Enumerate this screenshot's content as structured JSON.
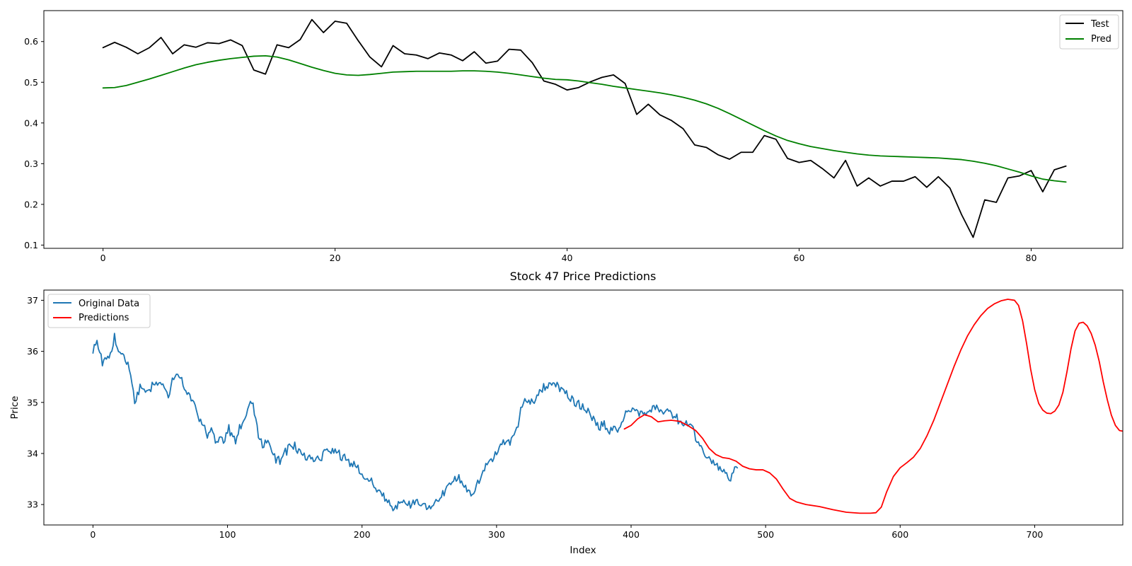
{
  "chart_data": [
    {
      "type": "line",
      "title": "",
      "xlabel": "",
      "ylabel": "",
      "xlim": [
        -5.1,
        87.9
      ],
      "ylim": [
        0.092,
        0.676
      ],
      "xticks": [
        0,
        20,
        40,
        60,
        80
      ],
      "yticks": [
        0.1,
        0.2,
        0.3,
        0.4,
        0.5,
        0.6
      ],
      "ytick_format": "1dp",
      "legend_position": "top-right",
      "series": [
        {
          "name": "Test",
          "color": "#000000",
          "x_start": 0,
          "x_step": 1,
          "values": [
            0.585,
            0.598,
            0.586,
            0.57,
            0.585,
            0.61,
            0.57,
            0.592,
            0.586,
            0.597,
            0.595,
            0.604,
            0.59,
            0.53,
            0.52,
            0.592,
            0.585,
            0.605,
            0.654,
            0.622,
            0.65,
            0.645,
            0.602,
            0.562,
            0.538,
            0.59,
            0.57,
            0.567,
            0.558,
            0.572,
            0.567,
            0.553,
            0.575,
            0.547,
            0.552,
            0.581,
            0.579,
            0.548,
            0.503,
            0.495,
            0.481,
            0.487,
            0.501,
            0.512,
            0.518,
            0.497,
            0.421,
            0.446,
            0.42,
            0.406,
            0.386,
            0.346,
            0.34,
            0.322,
            0.311,
            0.328,
            0.328,
            0.369,
            0.36,
            0.313,
            0.303,
            0.308,
            0.288,
            0.265,
            0.308,
            0.245,
            0.265,
            0.245,
            0.257,
            0.257,
            0.268,
            0.242,
            0.268,
            0.24,
            0.175,
            0.119,
            0.211,
            0.205,
            0.265,
            0.27,
            0.283,
            0.231,
            0.285,
            0.294
          ]
        },
        {
          "name": "Pred",
          "color": "#008000",
          "x_start": 0,
          "x_step": 1,
          "values": [
            0.486,
            0.487,
            0.492,
            0.5,
            0.508,
            0.517,
            0.526,
            0.535,
            0.543,
            0.549,
            0.554,
            0.558,
            0.561,
            0.564,
            0.565,
            0.562,
            0.555,
            0.546,
            0.537,
            0.529,
            0.522,
            0.518,
            0.517,
            0.519,
            0.522,
            0.525,
            0.526,
            0.527,
            0.527,
            0.527,
            0.527,
            0.528,
            0.528,
            0.527,
            0.525,
            0.522,
            0.518,
            0.514,
            0.51,
            0.507,
            0.506,
            0.503,
            0.499,
            0.495,
            0.49,
            0.486,
            0.482,
            0.478,
            0.474,
            0.469,
            0.463,
            0.456,
            0.447,
            0.436,
            0.423,
            0.409,
            0.395,
            0.381,
            0.368,
            0.357,
            0.349,
            0.342,
            0.337,
            0.332,
            0.328,
            0.324,
            0.321,
            0.319,
            0.318,
            0.317,
            0.316,
            0.315,
            0.314,
            0.312,
            0.31,
            0.306,
            0.301,
            0.295,
            0.287,
            0.279,
            0.27,
            0.262,
            0.258,
            0.255
          ]
        }
      ]
    },
    {
      "type": "line",
      "title": "Stock 47 Price Predictions",
      "xlabel": "Index",
      "ylabel": "Price",
      "xlim": [
        -36.5,
        765.5
      ],
      "ylim": [
        32.6,
        37.2
      ],
      "xticks": [
        0,
        100,
        200,
        300,
        400,
        500,
        600,
        700
      ],
      "yticks": [
        33,
        34,
        35,
        36,
        37
      ],
      "ytick_format": "int",
      "legend_position": "top-left",
      "series": [
        {
          "name": "Original Data",
          "color": "#1f77b4",
          "noise_amplitude": 0.12,
          "points": [
            [
              0,
              36.05
            ],
            [
              3,
              36.2
            ],
            [
              7,
              35.8
            ],
            [
              11,
              35.85
            ],
            [
              14,
              35.95
            ],
            [
              16,
              36.25
            ],
            [
              19,
              36.0
            ],
            [
              23,
              35.9
            ],
            [
              27,
              35.7
            ],
            [
              31,
              35.0
            ],
            [
              35,
              35.3
            ],
            [
              40,
              35.2
            ],
            [
              47,
              35.4
            ],
            [
              52,
              35.35
            ],
            [
              56,
              35.1
            ],
            [
              59,
              35.5
            ],
            [
              63,
              35.6
            ],
            [
              68,
              35.3
            ],
            [
              72,
              35.15
            ],
            [
              76,
              34.95
            ],
            [
              79,
              34.7
            ],
            [
              82,
              34.6
            ],
            [
              85,
              34.35
            ],
            [
              88,
              34.5
            ],
            [
              92,
              34.2
            ],
            [
              97,
              34.3
            ],
            [
              101,
              34.5
            ],
            [
              106,
              34.25
            ],
            [
              111,
              34.6
            ],
            [
              115,
              34.85
            ],
            [
              118,
              35.0
            ],
            [
              122,
              34.5
            ],
            [
              126,
              34.15
            ],
            [
              130,
              34.3
            ],
            [
              135,
              33.9
            ],
            [
              140,
              33.85
            ],
            [
              145,
              34.1
            ],
            [
              150,
              34.15
            ],
            [
              156,
              33.95
            ],
            [
              162,
              33.95
            ],
            [
              168,
              33.85
            ],
            [
              174,
              34.1
            ],
            [
              180,
              34.0
            ],
            [
              186,
              33.95
            ],
            [
              193,
              33.8
            ],
            [
              200,
              33.6
            ],
            [
              206,
              33.45
            ],
            [
              212,
              33.3
            ],
            [
              218,
              33.1
            ],
            [
              223,
              32.9
            ],
            [
              229,
              33.05
            ],
            [
              236,
              33.0
            ],
            [
              242,
              33.05
            ],
            [
              248,
              32.9
            ],
            [
              254,
              33.0
            ],
            [
              260,
              33.2
            ],
            [
              266,
              33.45
            ],
            [
              272,
              33.55
            ],
            [
              277,
              33.3
            ],
            [
              282,
              33.2
            ],
            [
              288,
              33.55
            ],
            [
              294,
              33.8
            ],
            [
              300,
              34.05
            ],
            [
              305,
              34.25
            ],
            [
              310,
              34.2
            ],
            [
              314,
              34.4
            ],
            [
              318,
              34.85
            ],
            [
              323,
              35.05
            ],
            [
              328,
              35.0
            ],
            [
              334,
              35.25
            ],
            [
              340,
              35.35
            ],
            [
              345,
              35.35
            ],
            [
              351,
              35.2
            ],
            [
              356,
              35.05
            ],
            [
              361,
              34.95
            ],
            [
              366,
              34.85
            ],
            [
              371,
              34.7
            ],
            [
              376,
              34.5
            ],
            [
              380,
              34.55
            ],
            [
              385,
              34.45
            ],
            [
              390,
              34.45
            ],
            [
              395,
              34.75
            ],
            [
              400,
              34.85
            ],
            [
              405,
              34.85
            ],
            [
              410,
              34.8
            ],
            [
              415,
              34.85
            ],
            [
              420,
              34.9
            ],
            [
              426,
              34.8
            ],
            [
              432,
              34.75
            ],
            [
              438,
              34.55
            ],
            [
              444,
              34.55
            ],
            [
              450,
              34.2
            ],
            [
              455,
              34.0
            ],
            [
              460,
              33.85
            ],
            [
              465,
              33.75
            ],
            [
              470,
              33.65
            ],
            [
              473,
              33.45
            ],
            [
              476,
              33.65
            ],
            [
              479,
              33.75
            ]
          ]
        },
        {
          "name": "Predictions",
          "color": "#ff0000",
          "points": [
            [
              395,
              34.48
            ],
            [
              400,
              34.55
            ],
            [
              405,
              34.68
            ],
            [
              410,
              34.76
            ],
            [
              415,
              34.72
            ],
            [
              420,
              34.62
            ],
            [
              425,
              34.64
            ],
            [
              430,
              34.65
            ],
            [
              436,
              34.63
            ],
            [
              442,
              34.55
            ],
            [
              448,
              34.45
            ],
            [
              453,
              34.3
            ],
            [
              458,
              34.1
            ],
            [
              463,
              33.98
            ],
            [
              468,
              33.92
            ],
            [
              473,
              33.9
            ],
            [
              478,
              33.85
            ],
            [
              483,
              33.75
            ],
            [
              488,
              33.7
            ],
            [
              493,
              33.68
            ],
            [
              498,
              33.68
            ],
            [
              503,
              33.62
            ],
            [
              508,
              33.5
            ],
            [
              513,
              33.3
            ],
            [
              518,
              33.12
            ],
            [
              523,
              33.05
            ],
            [
              530,
              33.0
            ],
            [
              540,
              32.96
            ],
            [
              550,
              32.9
            ],
            [
              560,
              32.85
            ],
            [
              570,
              32.83
            ],
            [
              578,
              32.83
            ],
            [
              582,
              32.84
            ],
            [
              586,
              32.95
            ],
            [
              590,
              33.25
            ],
            [
              595,
              33.55
            ],
            [
              600,
              33.72
            ],
            [
              605,
              33.82
            ],
            [
              610,
              33.93
            ],
            [
              615,
              34.1
            ],
            [
              620,
              34.35
            ],
            [
              625,
              34.65
            ],
            [
              630,
              35.0
            ],
            [
              635,
              35.35
            ],
            [
              640,
              35.7
            ],
            [
              645,
              36.02
            ],
            [
              650,
              36.3
            ],
            [
              655,
              36.52
            ],
            [
              660,
              36.7
            ],
            [
              665,
              36.84
            ],
            [
              670,
              36.93
            ],
            [
              675,
              36.99
            ],
            [
              680,
              37.02
            ],
            [
              685,
              37.0
            ],
            [
              688,
              36.9
            ],
            [
              691,
              36.6
            ],
            [
              694,
              36.15
            ],
            [
              697,
              35.65
            ],
            [
              700,
              35.25
            ],
            [
              703,
              34.98
            ],
            [
              706,
              34.85
            ],
            [
              709,
              34.79
            ],
            [
              712,
              34.78
            ],
            [
              715,
              34.83
            ],
            [
              718,
              34.95
            ],
            [
              721,
              35.2
            ],
            [
              724,
              35.6
            ],
            [
              727,
              36.05
            ],
            [
              730,
              36.4
            ],
            [
              733,
              36.55
            ],
            [
              736,
              36.57
            ],
            [
              739,
              36.5
            ],
            [
              742,
              36.35
            ],
            [
              745,
              36.12
            ],
            [
              748,
              35.8
            ],
            [
              751,
              35.4
            ],
            [
              754,
              35.05
            ],
            [
              757,
              34.75
            ],
            [
              760,
              34.55
            ],
            [
              763,
              34.45
            ],
            [
              765,
              34.44
            ]
          ]
        }
      ]
    }
  ]
}
